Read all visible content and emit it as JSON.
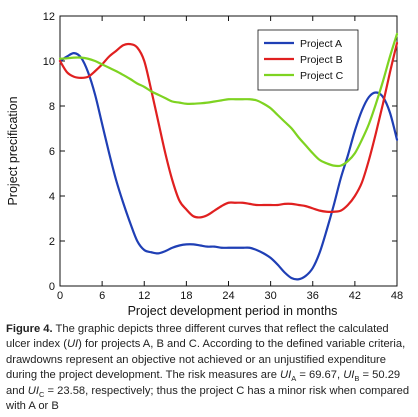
{
  "chart_data": {
    "type": "line",
    "title": "",
    "xlabel": "Project development period in months",
    "ylabel": "Project precification",
    "xlim": [
      0,
      48
    ],
    "ylim": [
      0,
      12
    ],
    "x_ticks": [
      "0",
      "6",
      "12",
      "18",
      "24",
      "30",
      "36",
      "42",
      "48"
    ],
    "y_ticks": [
      "0",
      "2",
      "4",
      "6",
      "8",
      "10",
      "12"
    ],
    "legend_position": "top-right",
    "grid": false,
    "series": [
      {
        "name": "Project A",
        "color": "#1f3fb5",
        "x": [
          0,
          1,
          2,
          3,
          4,
          5,
          6,
          7,
          8,
          9,
          10,
          11,
          12,
          13,
          14,
          15,
          16,
          17,
          18,
          19,
          20,
          21,
          22,
          23,
          24,
          25,
          26,
          27,
          28,
          29,
          30,
          31,
          32,
          33,
          34,
          35,
          36,
          37,
          38,
          39,
          40,
          41,
          42,
          43,
          44,
          45,
          46,
          47,
          48
        ],
        "values": [
          10.0,
          10.2,
          10.35,
          10.15,
          9.5,
          8.5,
          7.2,
          5.9,
          4.7,
          3.7,
          2.8,
          2.0,
          1.6,
          1.5,
          1.45,
          1.55,
          1.7,
          1.8,
          1.85,
          1.85,
          1.8,
          1.75,
          1.75,
          1.7,
          1.7,
          1.7,
          1.7,
          1.7,
          1.6,
          1.45,
          1.25,
          0.95,
          0.6,
          0.35,
          0.3,
          0.45,
          0.8,
          1.5,
          2.5,
          3.6,
          4.8,
          5.8,
          6.9,
          7.8,
          8.4,
          8.6,
          8.4,
          7.7,
          6.5
        ]
      },
      {
        "name": "Project B",
        "color": "#e02020",
        "x": [
          0,
          1,
          2,
          3,
          4,
          5,
          6,
          7,
          8,
          9,
          10,
          11,
          12,
          13,
          14,
          15,
          16,
          17,
          18,
          19,
          20,
          21,
          22,
          23,
          24,
          25,
          26,
          27,
          28,
          29,
          30,
          31,
          32,
          33,
          34,
          35,
          36,
          37,
          38,
          39,
          40,
          41,
          42,
          43,
          44,
          45,
          46,
          47,
          48
        ],
        "values": [
          10.0,
          9.5,
          9.3,
          9.25,
          9.3,
          9.55,
          9.85,
          10.2,
          10.45,
          10.7,
          10.75,
          10.6,
          10.0,
          8.7,
          7.3,
          5.9,
          4.7,
          3.8,
          3.4,
          3.1,
          3.05,
          3.15,
          3.35,
          3.55,
          3.7,
          3.7,
          3.7,
          3.65,
          3.6,
          3.6,
          3.6,
          3.6,
          3.65,
          3.65,
          3.6,
          3.55,
          3.45,
          3.35,
          3.3,
          3.3,
          3.35,
          3.6,
          4.0,
          4.6,
          5.6,
          6.8,
          8.1,
          9.5,
          10.8
        ]
      },
      {
        "name": "Project C",
        "color": "#7ed321",
        "x": [
          0,
          1,
          2,
          3,
          4,
          5,
          6,
          7,
          8,
          9,
          10,
          11,
          12,
          13,
          14,
          15,
          16,
          17,
          18,
          19,
          20,
          21,
          22,
          23,
          24,
          25,
          26,
          27,
          28,
          29,
          30,
          31,
          32,
          33,
          34,
          35,
          36,
          37,
          38,
          39,
          40,
          41,
          42,
          43,
          44,
          45,
          46,
          47,
          48
        ],
        "values": [
          10.1,
          10.12,
          10.15,
          10.15,
          10.1,
          10.0,
          9.85,
          9.7,
          9.55,
          9.38,
          9.2,
          9.0,
          8.85,
          8.65,
          8.5,
          8.35,
          8.2,
          8.15,
          8.1,
          8.1,
          8.12,
          8.15,
          8.2,
          8.25,
          8.3,
          8.3,
          8.3,
          8.3,
          8.25,
          8.1,
          7.9,
          7.6,
          7.3,
          7.0,
          6.6,
          6.25,
          5.9,
          5.6,
          5.45,
          5.35,
          5.35,
          5.55,
          5.9,
          6.5,
          7.2,
          8.1,
          9.1,
          10.2,
          11.2
        ]
      }
    ]
  },
  "caption": {
    "label": "Figure 4.",
    "text_1": " The graphic depicts three different curves that reflect the calculated ulcer index (",
    "ui_1": "UI",
    "text_2": ") for projects A, B and C. According to the defined variable criteria, drawdowns represent an objective not achieved or an unjustified expenditure during the project development. The risk measures are ",
    "ui_a": "UI",
    "sub_a": "A",
    "text_3": " = 69.67, ",
    "ui_b": "UI",
    "sub_b": "B",
    "text_4": " = 50.29 and ",
    "ui_c": "UI",
    "sub_c": "C",
    "text_5": " = 23.58, respectively; thus the project C has a minor risk when compared with A or B"
  }
}
